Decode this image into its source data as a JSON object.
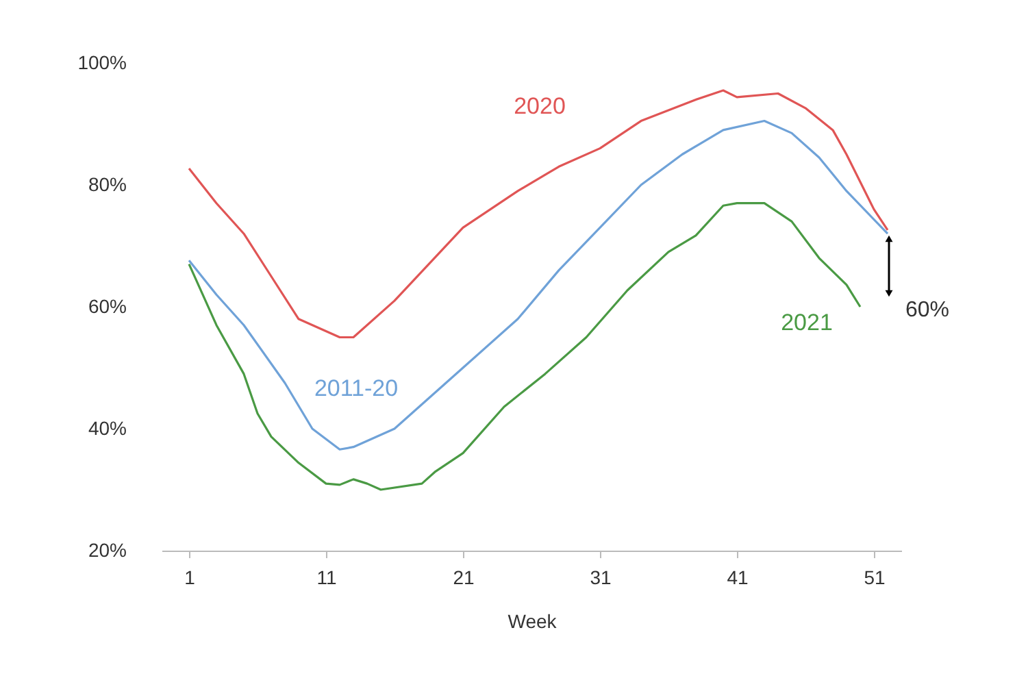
{
  "chart_data": {
    "type": "line",
    "xlabel": "Week",
    "xlim": [
      -1,
      53
    ],
    "xticks": [
      1,
      11,
      21,
      31,
      41,
      51
    ],
    "ylim": [
      20,
      100
    ],
    "yticks": [
      {
        "value": 20,
        "label": "20%"
      },
      {
        "value": 40,
        "label": "40%"
      },
      {
        "value": 60,
        "label": "60%"
      },
      {
        "value": 80,
        "label": "80%"
      },
      {
        "value": 100,
        "label": "100%"
      }
    ],
    "grid": false,
    "line_style": "solid",
    "marker": "none",
    "series": [
      {
        "name": "2020",
        "color": "#e05555",
        "x": [
          1,
          3,
          5,
          7,
          9,
          12,
          13,
          16,
          21,
          25,
          28,
          31,
          34,
          38,
          40,
          41,
          44,
          46,
          48,
          49,
          51,
          52
        ],
        "values": [
          82.7,
          77,
          72,
          65,
          58,
          55,
          55,
          61,
          73,
          79,
          83,
          86,
          90.5,
          94,
          95.5,
          94.4,
          95,
          92.6,
          89,
          85,
          76,
          72.6
        ]
      },
      {
        "name": "2011-20",
        "color": "#6fa2d8",
        "x": [
          1,
          3,
          5,
          8,
          10,
          12,
          13,
          16,
          21,
          25,
          28,
          31,
          34,
          37,
          40,
          43,
          45,
          47,
          49,
          52
        ],
        "values": [
          67.6,
          62,
          57,
          47.5,
          40,
          36.6,
          37,
          40,
          50,
          58,
          66,
          73,
          80,
          85,
          89,
          90.5,
          88.5,
          84.5,
          79,
          72
        ]
      },
      {
        "name": "2021",
        "color": "#4a9a44",
        "x": [
          1,
          3,
          5,
          6,
          7,
          9,
          11,
          12,
          13,
          14,
          15,
          18,
          19,
          21,
          24,
          27,
          30,
          33,
          36,
          38,
          40,
          41,
          43,
          45,
          47,
          49,
          50
        ],
        "values": [
          67,
          57,
          49,
          42.5,
          38.7,
          34.4,
          31,
          30.8,
          31.7,
          31,
          30,
          31,
          33,
          36,
          43.6,
          49,
          55,
          62.7,
          69,
          71.7,
          76.6,
          77,
          77,
          74,
          68,
          63.6,
          60
        ]
      }
    ],
    "annotations": [
      "60%"
    ]
  }
}
